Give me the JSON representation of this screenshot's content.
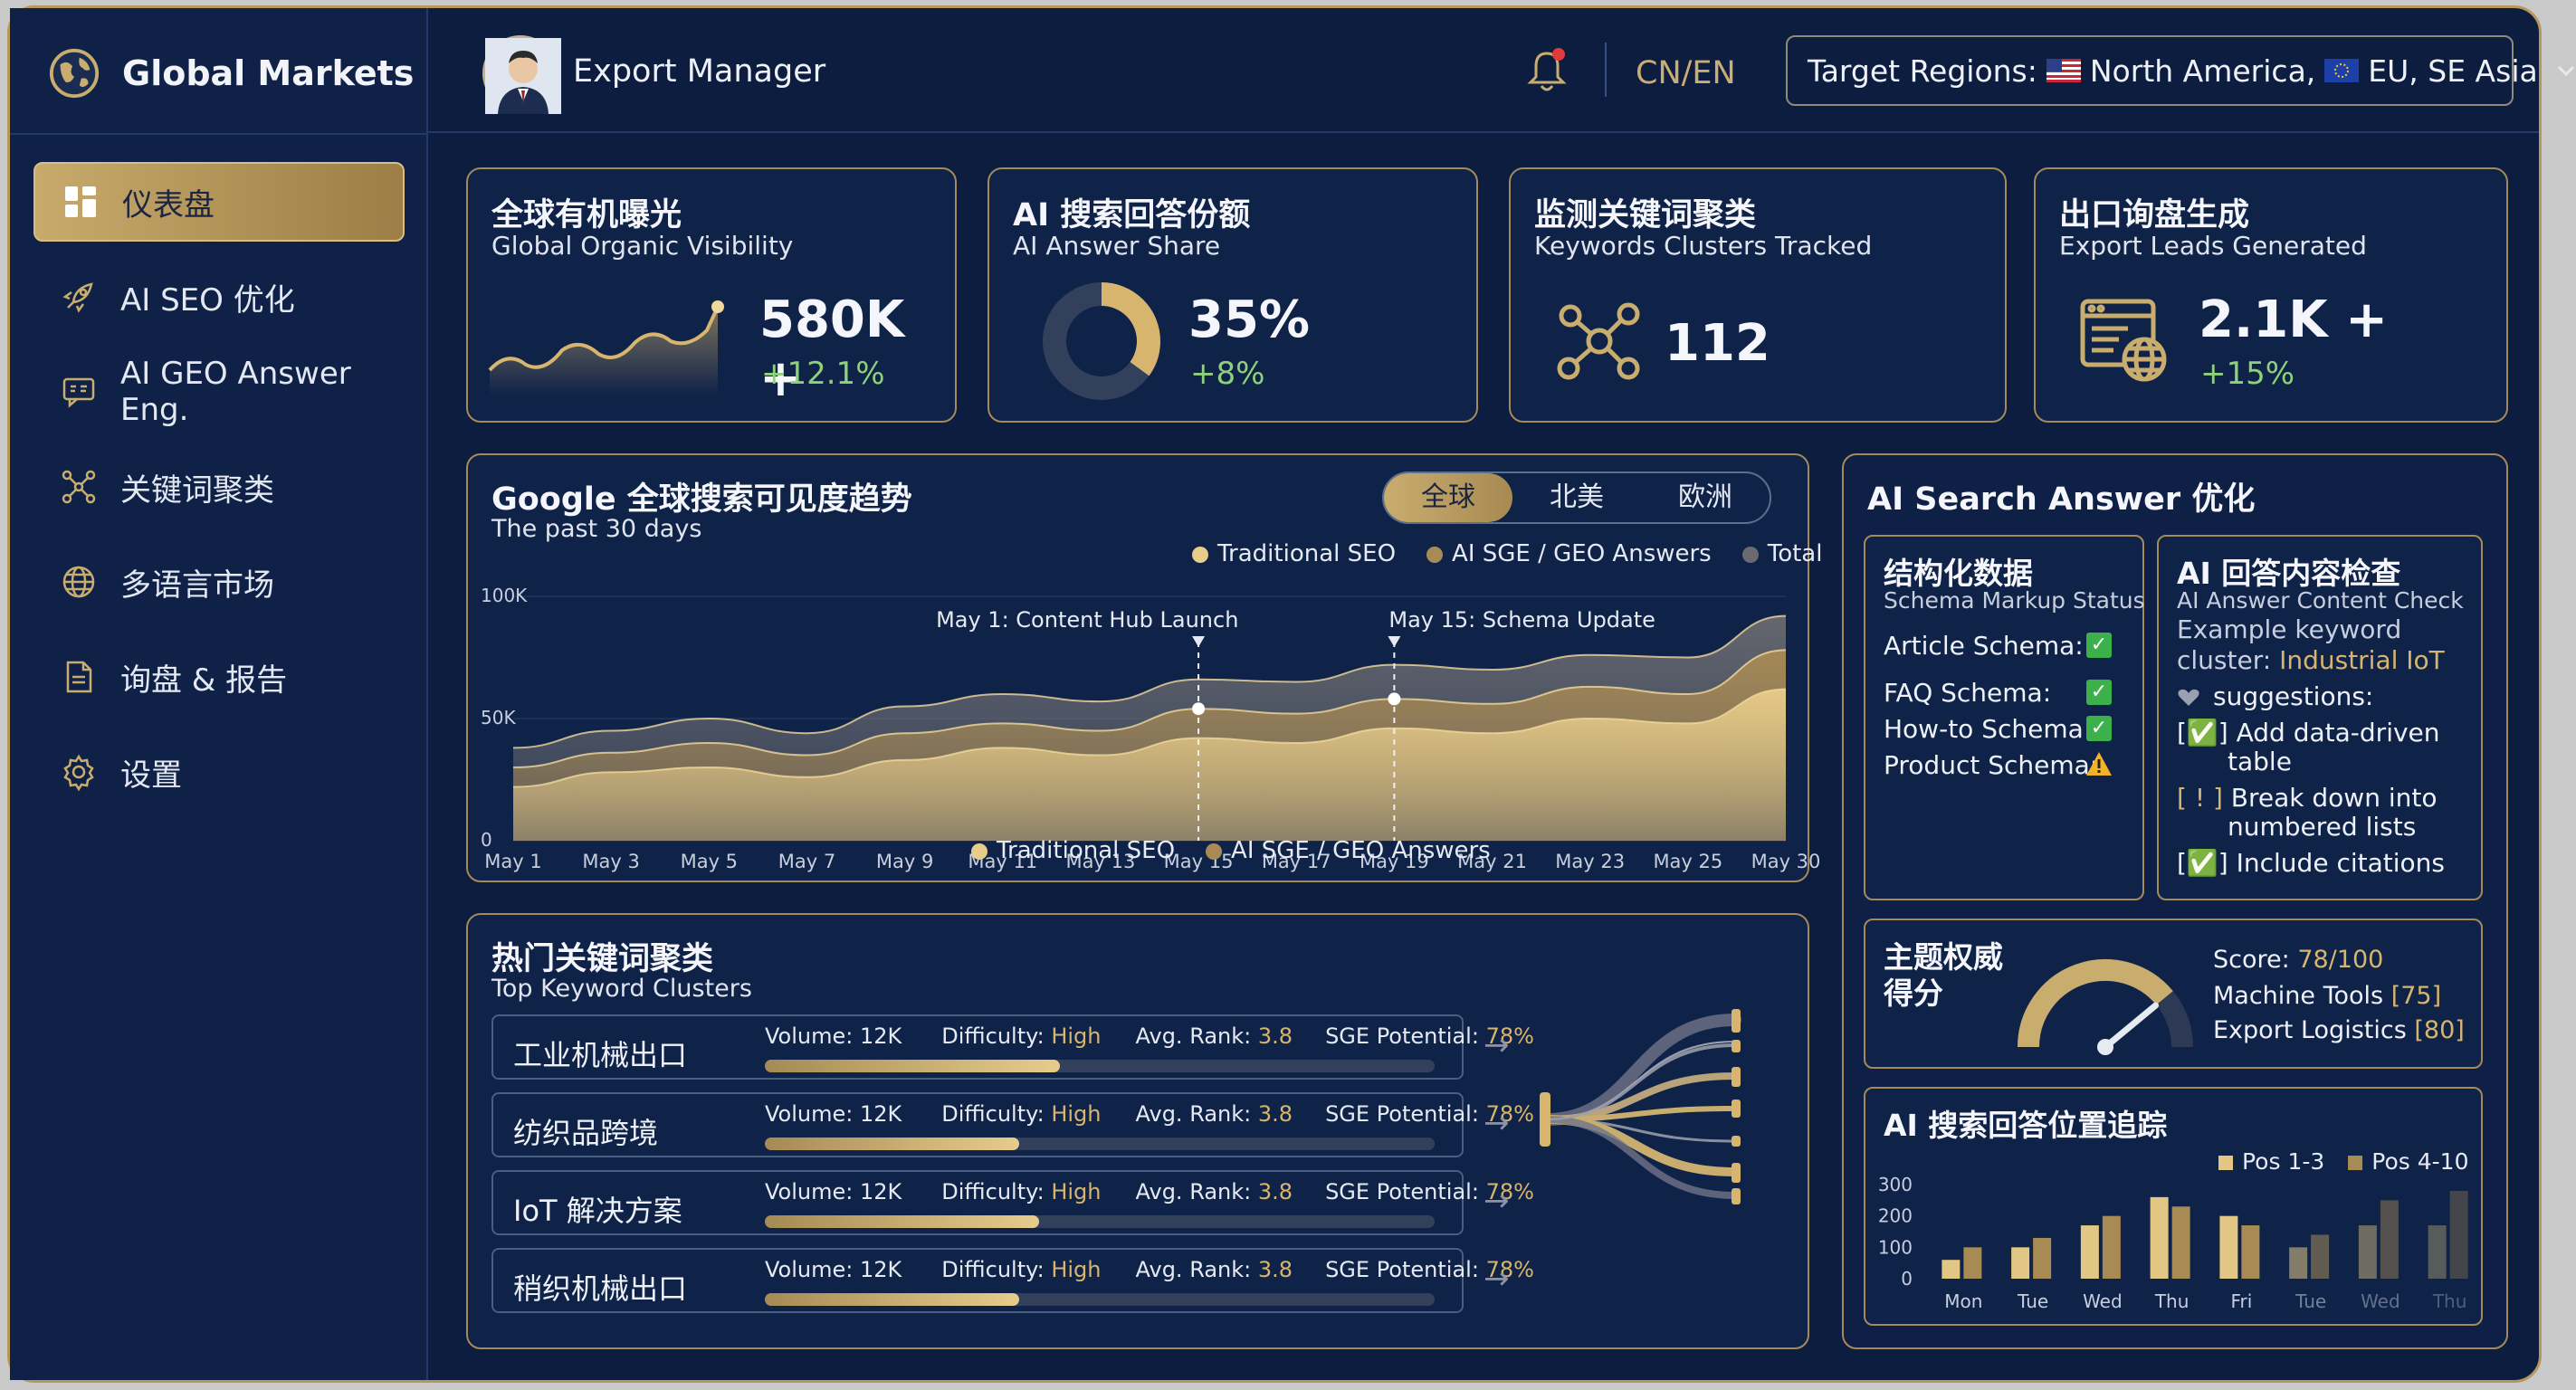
{
  "brand": {
    "name": "Global Markets",
    "icon": "globe-icon"
  },
  "sidebar": {
    "items": [
      {
        "label": "仪表盘",
        "icon": "dashboard-icon",
        "active": true
      },
      {
        "label": "AI SEO 优化",
        "icon": "rocket-icon"
      },
      {
        "label": "AI GEO Answer Eng.",
        "icon": "chat-icon"
      },
      {
        "label": "关键词聚类",
        "icon": "cluster-icon"
      },
      {
        "label": "多语言市场",
        "icon": "globe-icon"
      },
      {
        "label": "询盘 & 报告",
        "icon": "document-icon"
      },
      {
        "label": "设置",
        "icon": "gear-icon"
      }
    ]
  },
  "header": {
    "user_role": "Export Manager",
    "lang_toggle": "CN/EN",
    "regions_label": "Target Regions:",
    "region_1": "North America,",
    "region_2": "EU, SE Asia",
    "notification_badge": true
  },
  "kpis": [
    {
      "title": "全球有机曝光",
      "subtitle": "Global Organic Visibility",
      "value": "580K +",
      "delta": "+12.1%"
    },
    {
      "title": "AI 搜索回答份额",
      "subtitle": "AI Answer Share",
      "value": "35%",
      "delta": "+8%",
      "ring_fraction": 0.35
    },
    {
      "title": "监测关键词聚类",
      "subtitle": "Keywords Clusters Tracked",
      "value": "112"
    },
    {
      "title": "出口询盘生成",
      "subtitle": "Export Leads Generated",
      "value": "2.1K +",
      "delta": "+15%"
    }
  ],
  "trend": {
    "title": "Google 全球搜索可见度趋势",
    "subtitle": "The past 30 days",
    "tabs": [
      "全球",
      "北美",
      "欧洲"
    ],
    "active_tab": 0,
    "legend_top": [
      "Traditional SEO",
      "AI SGE / GEO Answers",
      "Total"
    ],
    "legend_bottom": [
      "Traditional SEO",
      "AI SGE / GEO Answers"
    ],
    "annotations": [
      "May 1: Content Hub Launch",
      "May 15: Schema Update"
    ]
  },
  "chart_data": {
    "type": "area",
    "x": [
      "May 1",
      "May 3",
      "May 5",
      "May 7",
      "May 9",
      "May 11",
      "May 13",
      "May 15",
      "May 17",
      "May 19",
      "May 21",
      "May 23",
      "May 25",
      "May 30"
    ],
    "y_ticks": [
      "100K",
      "50K",
      "0"
    ],
    "ylim": [
      0,
      100000
    ],
    "series": [
      {
        "name": "Traditional SEO",
        "values": [
          22000,
          28000,
          30000,
          26000,
          33000,
          38000,
          35000,
          42000,
          40000,
          46000,
          44000,
          50000,
          48000,
          62000
        ]
      },
      {
        "name": "AI SGE / GEO Answers",
        "values": [
          30000,
          36000,
          40000,
          35000,
          44000,
          48000,
          45000,
          54000,
          52000,
          58000,
          56000,
          63000,
          60000,
          78000
        ]
      },
      {
        "name": "Total",
        "values": [
          38000,
          45000,
          50000,
          44000,
          55000,
          60000,
          57000,
          66000,
          65000,
          72000,
          70000,
          76000,
          75000,
          92000
        ]
      }
    ],
    "colors": [
      "#e8cc8a",
      "#a88a55",
      "#6a6b70"
    ]
  },
  "keywords": {
    "title": "热门关键词聚类",
    "subtitle": "Top Keyword Clusters",
    "labels": {
      "volume": "Volume:",
      "difficulty": "Difficulty:",
      "rank": "Avg. Rank:",
      "sge": "SGE Potential:"
    },
    "rows": [
      {
        "name": "工业机械出口",
        "volume": "12K",
        "difficulty": "High",
        "rank": "3.8",
        "sge": "78%",
        "fill": 0.44
      },
      {
        "name": "纺织品跨境",
        "volume": "12K",
        "difficulty": "High",
        "rank": "3.8",
        "sge": "78%",
        "fill": 0.38
      },
      {
        "name": "IoT 解决方案",
        "volume": "12K",
        "difficulty": "High",
        "rank": "3.8",
        "sge": "78%",
        "fill": 0.41
      },
      {
        "name": "稍织机械出口",
        "volume": "12K",
        "difficulty": "High",
        "rank": "3.8",
        "sge": "78%",
        "fill": 0.38
      }
    ]
  },
  "ai_search": {
    "title": "AI Search Answer 优化",
    "schema": {
      "title": "结构化数据",
      "subtitle": "Schema Markup Status",
      "items": [
        {
          "label": "Article Schema:",
          "status": "ok"
        },
        {
          "label": "FAQ Schema:",
          "status": "ok"
        },
        {
          "label": "How-to Schema:",
          "status": "ok"
        },
        {
          "label": "Product Schema:",
          "status": "warn"
        }
      ]
    },
    "content_check": {
      "title": "AI 回答内容检查",
      "subtitle": "AI Answer Content Check",
      "example_label": "Example keyword",
      "cluster_label": "cluster:",
      "cluster_value": "Industrial IoT",
      "suggestions_label": "suggestions:",
      "items": [
        {
          "mark": "[✅]",
          "text_1": "Add data-driven",
          "text_2": "table"
        },
        {
          "mark": "[ ! ]",
          "text_1": "Break down into",
          "text_2": "numbered lists"
        },
        {
          "mark": "[✅]",
          "text_1": "Include citations",
          "text_2": ""
        }
      ]
    }
  },
  "authority": {
    "title_1": "主题权威",
    "title_2": "得分",
    "score_label": "Score:",
    "score_value": "78/100",
    "score_fraction": 0.78,
    "topic_1": "Machine Tools",
    "topic_1_value": "[75]",
    "topic_2": "Export Logistics",
    "topic_2_value": "[80]"
  },
  "position_tracking": {
    "title": "AI 搜索回答位置追踪",
    "legend": [
      "Pos 1-3",
      "Pos 4-10"
    ],
    "y_ticks": [
      "300",
      "200",
      "100",
      "0"
    ],
    "days": [
      "Mon",
      "Tue",
      "Wed",
      "Thu",
      "Fri",
      "Tue",
      "Wed",
      "Thu"
    ],
    "pos_1_3": [
      60,
      100,
      170,
      260,
      200,
      100,
      170,
      170
    ],
    "pos_4_10": [
      100,
      130,
      200,
      230,
      170,
      140,
      250,
      280
    ]
  }
}
